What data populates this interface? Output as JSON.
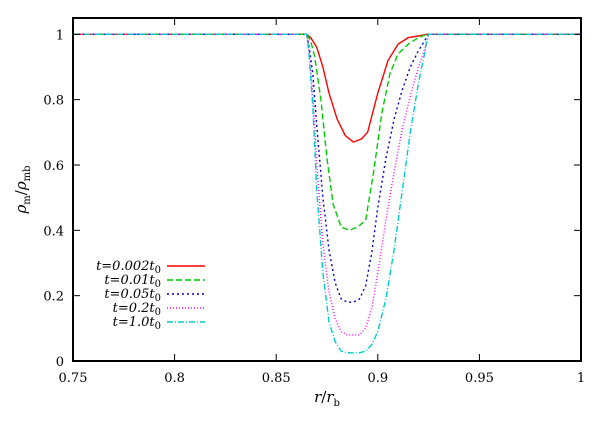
{
  "chart_data": {
    "type": "line",
    "title": "",
    "xlabel": {
      "main": "r",
      "slash": "/",
      "denominator": "r",
      "denominator_sub": "b"
    },
    "ylabel": {
      "numerator": "ρ",
      "numerator_sub": "m",
      "slash": "/",
      "denominator": "ρ",
      "denominator_sub": "mb"
    },
    "xlim": [
      0.75,
      1.0
    ],
    "ylim": [
      0,
      1.05
    ],
    "xticks": [
      0.75,
      0.8,
      0.85,
      0.9,
      0.95,
      1.0
    ],
    "xtick_labels": [
      "0.75",
      "0.8",
      "0.85",
      "0.9",
      "0.95",
      "1"
    ],
    "yticks": [
      0,
      0.2,
      0.4,
      0.6,
      0.8,
      1.0
    ],
    "ytick_labels": [
      "0",
      "0.2",
      "0.4",
      "0.6",
      "0.8",
      "1"
    ],
    "grid": false,
    "legend_position": "bottom-left",
    "series": [
      {
        "name": "t=0.002t0",
        "label_main": "t=0.002t",
        "label_sub": "0",
        "color": "#ff0000",
        "dash": "",
        "x": [
          0.75,
          0.865,
          0.867,
          0.87,
          0.873,
          0.876,
          0.88,
          0.884,
          0.888,
          0.892,
          0.895,
          0.9,
          0.905,
          0.91,
          0.915,
          0.92,
          0.924,
          0.925,
          1.0
        ],
        "y": [
          1.0,
          1.0,
          0.99,
          0.96,
          0.9,
          0.82,
          0.74,
          0.69,
          0.67,
          0.68,
          0.7,
          0.82,
          0.92,
          0.97,
          0.99,
          0.995,
          1.0,
          1.0,
          1.0
        ]
      },
      {
        "name": "t=0.01t0",
        "label_main": "t=0.01t",
        "label_sub": "0",
        "color": "#00cc00",
        "dash": "6,3",
        "x": [
          0.75,
          0.865,
          0.867,
          0.869,
          0.872,
          0.875,
          0.878,
          0.882,
          0.886,
          0.89,
          0.894,
          0.898,
          0.902,
          0.906,
          0.91,
          0.915,
          0.92,
          0.924,
          0.925,
          1.0
        ],
        "y": [
          1.0,
          1.0,
          0.98,
          0.93,
          0.8,
          0.62,
          0.48,
          0.41,
          0.4,
          0.41,
          0.43,
          0.58,
          0.76,
          0.88,
          0.94,
          0.97,
          0.99,
          1.0,
          1.0,
          1.0
        ]
      },
      {
        "name": "t=0.05t0",
        "label_main": "t=0.05t",
        "label_sub": "0",
        "color": "#0000cc",
        "dash": "2,3",
        "x": [
          0.75,
          0.865,
          0.866,
          0.868,
          0.87,
          0.873,
          0.876,
          0.879,
          0.882,
          0.885,
          0.888,
          0.891,
          0.894,
          0.897,
          0.9,
          0.904,
          0.908,
          0.912,
          0.916,
          0.92,
          0.924,
          0.925,
          1.0
        ],
        "y": [
          1.0,
          1.0,
          0.97,
          0.88,
          0.72,
          0.5,
          0.34,
          0.24,
          0.19,
          0.18,
          0.18,
          0.19,
          0.23,
          0.33,
          0.47,
          0.62,
          0.74,
          0.83,
          0.9,
          0.95,
          0.99,
          1.0,
          1.0
        ]
      },
      {
        "name": "t=0.2t0",
        "label_main": "t=0.2t",
        "label_sub": "0",
        "color": "#ff00ff",
        "dash": "1,2",
        "x": [
          0.75,
          0.865,
          0.866,
          0.868,
          0.87,
          0.873,
          0.876,
          0.879,
          0.882,
          0.885,
          0.888,
          0.891,
          0.894,
          0.897,
          0.9,
          0.904,
          0.908,
          0.912,
          0.916,
          0.92,
          0.924,
          0.925,
          1.0
        ],
        "y": [
          1.0,
          1.0,
          0.96,
          0.82,
          0.6,
          0.36,
          0.21,
          0.13,
          0.09,
          0.08,
          0.08,
          0.08,
          0.1,
          0.16,
          0.27,
          0.43,
          0.58,
          0.71,
          0.81,
          0.9,
          0.97,
          1.0,
          1.0
        ]
      },
      {
        "name": "t=1.0t0",
        "label_main": "t=1.0t",
        "label_sub": "0",
        "color": "#00cccc",
        "dash": "6,2,1,2",
        "x": [
          0.75,
          0.865,
          0.866,
          0.868,
          0.87,
          0.873,
          0.876,
          0.879,
          0.882,
          0.885,
          0.888,
          0.891,
          0.894,
          0.897,
          0.9,
          0.904,
          0.908,
          0.912,
          0.916,
          0.92,
          0.923,
          0.924,
          0.925,
          1.0
        ],
        "y": [
          1.0,
          1.0,
          0.95,
          0.78,
          0.52,
          0.27,
          0.12,
          0.06,
          0.03,
          0.025,
          0.025,
          0.025,
          0.03,
          0.05,
          0.09,
          0.19,
          0.34,
          0.52,
          0.7,
          0.85,
          0.94,
          0.98,
          1.0,
          1.0
        ]
      }
    ]
  }
}
